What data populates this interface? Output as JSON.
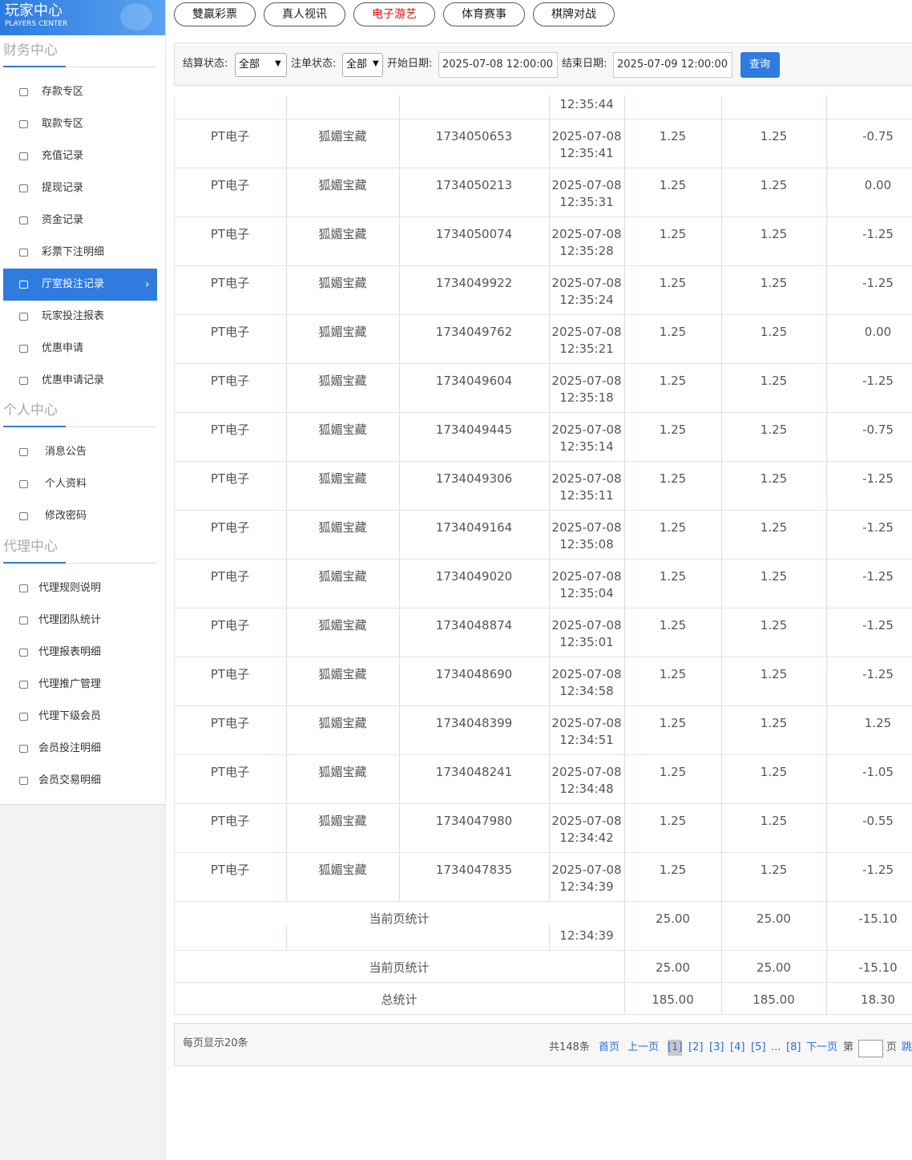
{
  "header": {
    "title": "玩家中心",
    "subtitle": "PLAYERS CENTER"
  },
  "tabs": [
    "雙贏彩票",
    "真人视讯",
    "电子游艺",
    "体育赛事",
    "棋牌对战"
  ],
  "sidebar": [
    {
      "title": "财务中心",
      "items": [
        "存款专区",
        "取款专区",
        "充值记录",
        "提现记录",
        "资金记录",
        "彩票下注明细",
        "厅室投注记录",
        "玩家投注报表",
        "优惠申请",
        "优惠申请记录"
      ]
    },
    {
      "title": "个人中心",
      "items": [
        "消息公告",
        "个人资料",
        "修改密码"
      ]
    },
    {
      "title": "代理中心",
      "items": [
        "代理规则说明",
        "代理团队统计",
        "代理报表明细",
        "代理推广管理",
        "代理下级会员",
        "会员投注明细",
        "会员交易明细"
      ]
    }
  ],
  "filter": {
    "settle_label": "结算状态:",
    "settle_value": "全部",
    "order_label": "注单状态:",
    "order_value": "全部",
    "start_label": "开始日期:",
    "start_value": "2025-07-08 12:00:00",
    "end_label": "结束日期:",
    "end_value": "2025-07-09 12:00:00",
    "button": "查询"
  },
  "table": {
    "partial_time": "12:35:44",
    "rows": [
      [
        "PT电子",
        "狐媚宝藏",
        "1734050653",
        "2025-07-08",
        "12:35:41",
        "1.25",
        "1.25",
        "-0.75"
      ],
      [
        "PT电子",
        "狐媚宝藏",
        "1734050213",
        "2025-07-08",
        "12:35:31",
        "1.25",
        "1.25",
        "0.00"
      ],
      [
        "PT电子",
        "狐媚宝藏",
        "1734050074",
        "2025-07-08",
        "12:35:28",
        "1.25",
        "1.25",
        "-1.25"
      ],
      [
        "PT电子",
        "狐媚宝藏",
        "1734049922",
        "2025-07-08",
        "12:35:24",
        "1.25",
        "1.25",
        "-1.25"
      ],
      [
        "PT电子",
        "狐媚宝藏",
        "1734049762",
        "2025-07-08",
        "12:35:21",
        "1.25",
        "1.25",
        "0.00"
      ],
      [
        "PT电子",
        "狐媚宝藏",
        "1734049604",
        "2025-07-08",
        "12:35:18",
        "1.25",
        "1.25",
        "-1.25"
      ],
      [
        "PT电子",
        "狐媚宝藏",
        "1734049445",
        "2025-07-08",
        "12:35:14",
        "1.25",
        "1.25",
        "-0.75"
      ],
      [
        "PT电子",
        "狐媚宝藏",
        "1734049306",
        "2025-07-08",
        "12:35:11",
        "1.25",
        "1.25",
        "-1.25"
      ],
      [
        "PT电子",
        "狐媚宝藏",
        "1734049164",
        "2025-07-08",
        "12:35:08",
        "1.25",
        "1.25",
        "-1.25"
      ],
      [
        "PT电子",
        "狐媚宝藏",
        "1734049020",
        "2025-07-08",
        "12:35:04",
        "1.25",
        "1.25",
        "-1.25"
      ],
      [
        "PT电子",
        "狐媚宝藏",
        "1734048874",
        "2025-07-08",
        "12:35:01",
        "1.25",
        "1.25",
        "-1.25"
      ],
      [
        "PT电子",
        "狐媚宝藏",
        "1734048690",
        "2025-07-08",
        "12:34:58",
        "1.25",
        "1.25",
        "-1.25"
      ],
      [
        "PT电子",
        "狐媚宝藏",
        "1734048399",
        "2025-07-08",
        "12:34:51",
        "1.25",
        "1.25",
        "1.25"
      ],
      [
        "PT电子",
        "狐媚宝藏",
        "1734048241",
        "2025-07-08",
        "12:34:48",
        "1.25",
        "1.25",
        "-1.05"
      ],
      [
        "PT电子",
        "狐媚宝藏",
        "1734047980",
        "2025-07-08",
        "12:34:42",
        "1.25",
        "1.25",
        "-0.55"
      ],
      [
        "PT电子",
        "狐媚宝藏",
        "1734047835",
        "2025-07-08",
        "12:34:39",
        "1.25",
        "1.25",
        "-1.25"
      ]
    ],
    "summary": [
      {
        "label": "当前页统计",
        "bet": "25.00",
        "valid": "25.00",
        "win": "-15.10",
        "time": "12:34:39"
      },
      {
        "label": "当前页统计",
        "bet": "25.00",
        "valid": "25.00",
        "win": "-15.10"
      },
      {
        "label": "总统计",
        "bet": "185.00",
        "valid": "185.00",
        "win": "18.30"
      }
    ]
  },
  "pager": {
    "per_page": "每页显示20条",
    "total": "共148条",
    "first": "首页",
    "prev": "上一页",
    "pages": [
      "[1]",
      "[2]",
      "[3]",
      "[4]",
      "[5]",
      "...",
      "[8]"
    ],
    "next": "下一页",
    "goto_prefix": "第",
    "goto_suffix": "页",
    "jump": "跳"
  }
}
